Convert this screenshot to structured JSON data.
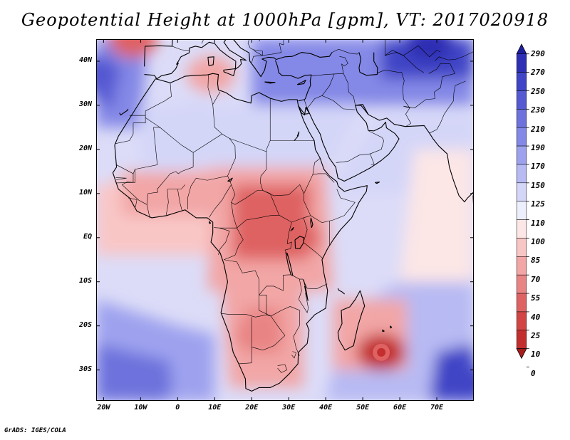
{
  "title": "Geopotential Height at 1000hPa [gpm], VT: 2017020918",
  "credit": "GrADS: IGES/COLA",
  "map": {
    "projection": "latlon",
    "lon_range": [
      -22,
      80
    ],
    "lat_range": [
      -37,
      45
    ],
    "lat_ticks": [
      {
        "value": 40,
        "label": "40N"
      },
      {
        "value": 30,
        "label": "30N"
      },
      {
        "value": 20,
        "label": "20N"
      },
      {
        "value": 10,
        "label": "10N"
      },
      {
        "value": 0,
        "label": "EQ"
      },
      {
        "value": -10,
        "label": "10S"
      },
      {
        "value": -20,
        "label": "20S"
      },
      {
        "value": -30,
        "label": "30S"
      }
    ],
    "lon_ticks": [
      {
        "value": -20,
        "label": "20W"
      },
      {
        "value": -10,
        "label": "10W"
      },
      {
        "value": 0,
        "label": "0"
      },
      {
        "value": 10,
        "label": "10E"
      },
      {
        "value": 20,
        "label": "20E"
      },
      {
        "value": 30,
        "label": "30E"
      },
      {
        "value": 40,
        "label": "40E"
      },
      {
        "value": 50,
        "label": "50E"
      },
      {
        "value": 60,
        "label": "60E"
      },
      {
        "value": 70,
        "label": "70E"
      }
    ],
    "field_features": [
      {
        "name": "central-africa-low",
        "lon": 24,
        "lat": 5,
        "value": 45
      },
      {
        "name": "east-africa-low",
        "lon": 32,
        "lat": 0,
        "value": 45
      },
      {
        "name": "kalahari-low",
        "lon": 22,
        "lat": -22,
        "value": 60
      },
      {
        "name": "mascarene-low",
        "lon": 55,
        "lat": -26,
        "value": 20
      },
      {
        "name": "atlas-low",
        "lon": -12,
        "lat": 45,
        "value": 40
      },
      {
        "name": "tunisia-low",
        "lon": 9,
        "lat": 37,
        "value": 70
      },
      {
        "name": "south-atlantic-high",
        "lon": -8,
        "lat": -33,
        "value": 215
      },
      {
        "name": "indian-ocean-high",
        "lon": 78,
        "lat": -33,
        "value": 250
      },
      {
        "name": "azores-high",
        "lon": -22,
        "lat": 37,
        "value": 230
      },
      {
        "name": "eurasian-high",
        "lon": 68,
        "lat": 44,
        "value": 285
      },
      {
        "name": "sahara-ridge",
        "lon": 5,
        "lat": 27,
        "value": 140
      }
    ]
  },
  "colorbar": {
    "levels": [
      "290",
      "270",
      "250",
      "230",
      "210",
      "190",
      "170",
      "150",
      "125",
      "110",
      "100",
      "85",
      "70",
      "55",
      "40",
      "25",
      "10",
      "0"
    ],
    "colors": [
      "#1e1fa0",
      "#2d2fb4",
      "#3f45c6",
      "#5559d2",
      "#6d72dc",
      "#8488e6",
      "#9ea2ee",
      "#b7baf3",
      "#d4d6f8",
      "#eeeffc",
      "#fce6e6",
      "#f9c6c6",
      "#f2a6a6",
      "#e98484",
      "#df6262",
      "#d34545",
      "#c32e2e",
      "#a81c1c"
    ]
  }
}
